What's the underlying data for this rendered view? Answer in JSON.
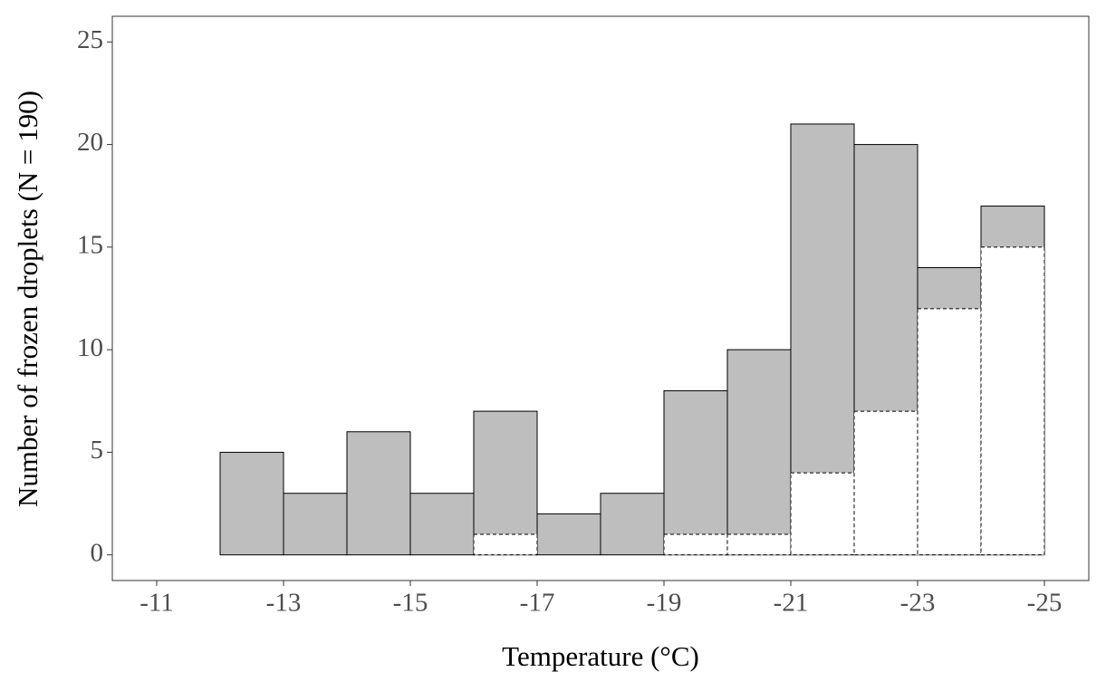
{
  "chart_data": {
    "type": "histogram",
    "x_label": "Temperature (°C)",
    "y_label": "Number of frozen droplets (N = 190)",
    "bins": [
      -11,
      -12,
      -13,
      -14,
      -15,
      -16,
      -17,
      -18,
      -19,
      -20,
      -21,
      -22,
      -23,
      -24,
      -25
    ],
    "series": [
      {
        "color": "#bebebe",
        "values": [
          0,
          5,
          3,
          6,
          3,
          7,
          2,
          3,
          8,
          10,
          21,
          20,
          14,
          17
        ]
      },
      {
        "color": "#ffffff",
        "values": [
          0,
          0,
          0,
          0,
          0,
          1,
          0,
          0,
          1,
          1,
          4,
          7,
          12,
          15
        ]
      }
    ],
    "xlim": [
      -10.3,
      -25.7
    ],
    "xticks": [
      -11,
      -13,
      -15,
      -17,
      -19,
      -21,
      -23,
      -25
    ],
    "ylim": [
      -1.25,
      26.25
    ],
    "yticks": [
      0,
      5,
      10,
      15,
      20,
      25
    ],
    "grid": false
  }
}
